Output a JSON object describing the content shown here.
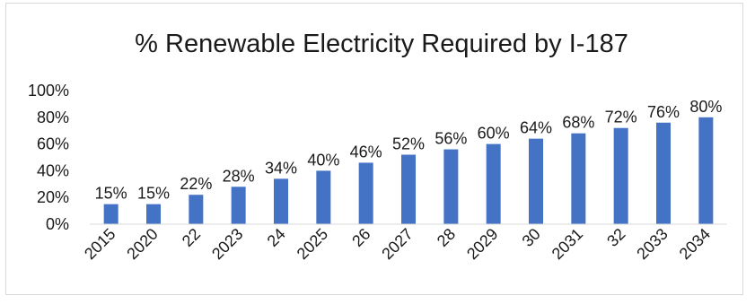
{
  "chart_data": {
    "type": "bar",
    "title": "% Renewable Electricity Required by I-187",
    "xlabel": "",
    "ylabel": "",
    "categories": [
      "2015",
      "2020",
      "22",
      "2023",
      "24",
      "2025",
      "26",
      "2027",
      "28",
      "2029",
      "30",
      "2031",
      "32",
      "2033",
      "2034"
    ],
    "values": [
      15,
      15,
      22,
      28,
      34,
      40,
      46,
      52,
      56,
      60,
      64,
      68,
      72,
      76,
      80
    ],
    "value_labels": [
      "15%",
      "15%",
      "22%",
      "28%",
      "34%",
      "40%",
      "46%",
      "52%",
      "56%",
      "60%",
      "64%",
      "68%",
      "72%",
      "76%",
      "80%"
    ],
    "y_ticks": [
      0,
      20,
      40,
      60,
      80,
      100
    ],
    "y_tick_labels": [
      "0%",
      "20%",
      "40%",
      "60%",
      "80%",
      "100%"
    ],
    "ylim": [
      0,
      100
    ],
    "grid": false,
    "legend": "none",
    "bar_color": "#4472c4"
  }
}
